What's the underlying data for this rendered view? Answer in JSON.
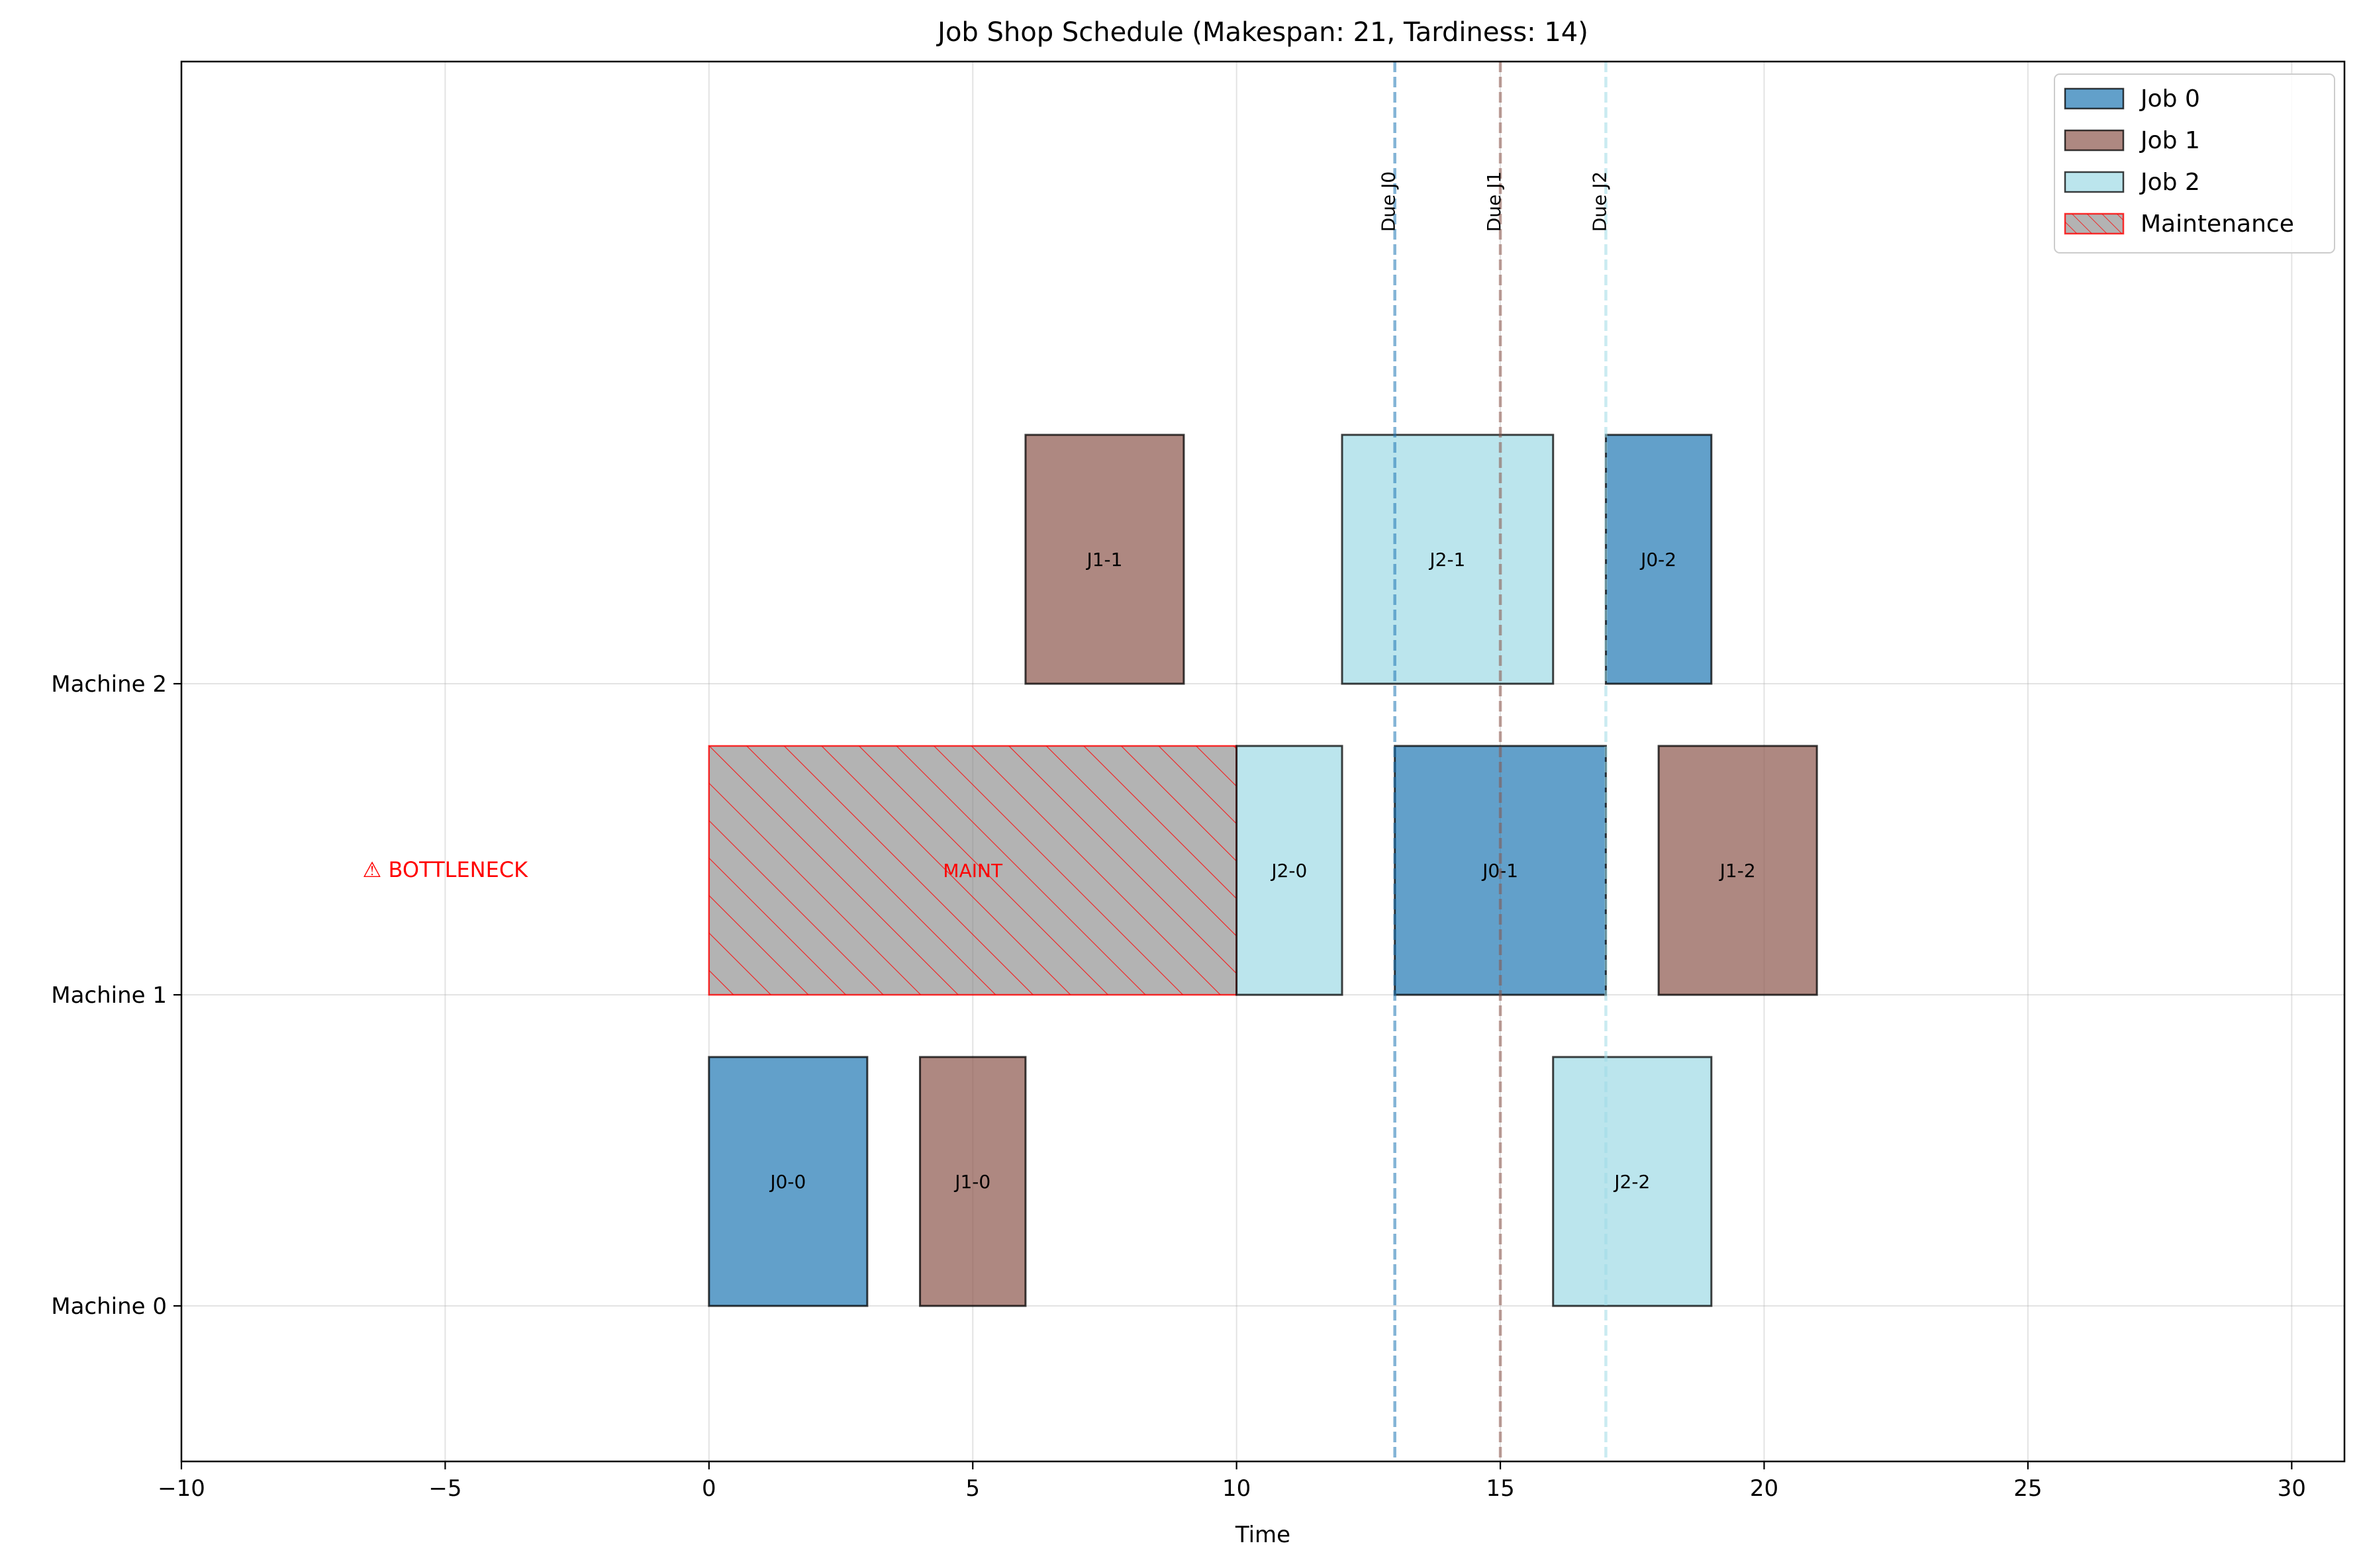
{
  "chart_data": {
    "type": "gantt",
    "title": "Job Shop Schedule (Makespan: 21, Tardiness: 14)",
    "xlabel": "Time",
    "ylabel": "",
    "xlim": [
      -10,
      31
    ],
    "ylim": [
      -0.5,
      4.0
    ],
    "xticks": [
      -10,
      -5,
      0,
      5,
      10,
      15,
      20,
      25,
      30
    ],
    "xtick_labels": [
      "−10",
      "−5",
      "0",
      "5",
      "10",
      "15",
      "20",
      "25",
      "30"
    ],
    "machines": [
      "Machine 0",
      "Machine 1",
      "Machine 2"
    ],
    "grid": true,
    "legend_position": "top-right",
    "jobs": [
      {
        "name": "Job 0",
        "color": "#1f77b4"
      },
      {
        "name": "Job 1",
        "color": "#8c564b"
      },
      {
        "name": "Job 2",
        "color": "#9edae5"
      }
    ],
    "maintenance": {
      "name": "Maintenance",
      "label": "MAINT",
      "machine": 1,
      "start": 0,
      "end": 10,
      "color": "#808080",
      "edge_color": "#ff0000"
    },
    "tasks": [
      {
        "label": "J0-0",
        "job": 0,
        "machine": 0,
        "start": 0,
        "end": 3
      },
      {
        "label": "J1-0",
        "job": 1,
        "machine": 0,
        "start": 4,
        "end": 6
      },
      {
        "label": "J2-2",
        "job": 2,
        "machine": 0,
        "start": 16,
        "end": 19
      },
      {
        "label": "J2-0",
        "job": 2,
        "machine": 1,
        "start": 10,
        "end": 12
      },
      {
        "label": "J0-1",
        "job": 0,
        "machine": 1,
        "start": 13,
        "end": 17
      },
      {
        "label": "J1-2",
        "job": 1,
        "machine": 1,
        "start": 18,
        "end": 21
      },
      {
        "label": "J1-1",
        "job": 1,
        "machine": 2,
        "start": 6,
        "end": 9
      },
      {
        "label": "J2-1",
        "job": 2,
        "machine": 2,
        "start": 12,
        "end": 16
      },
      {
        "label": "J0-2",
        "job": 0,
        "machine": 2,
        "start": 17,
        "end": 19
      }
    ],
    "due_dates": [
      {
        "label": "Due J0",
        "job": 0,
        "time": 13
      },
      {
        "label": "Due J1",
        "job": 1,
        "time": 15
      },
      {
        "label": "Due J2",
        "job": 2,
        "time": 17
      }
    ],
    "annotations": [
      {
        "text": "⚠ BOTTLENECK",
        "x": -5,
        "machine": 1,
        "color": "#ff0000"
      }
    ]
  }
}
